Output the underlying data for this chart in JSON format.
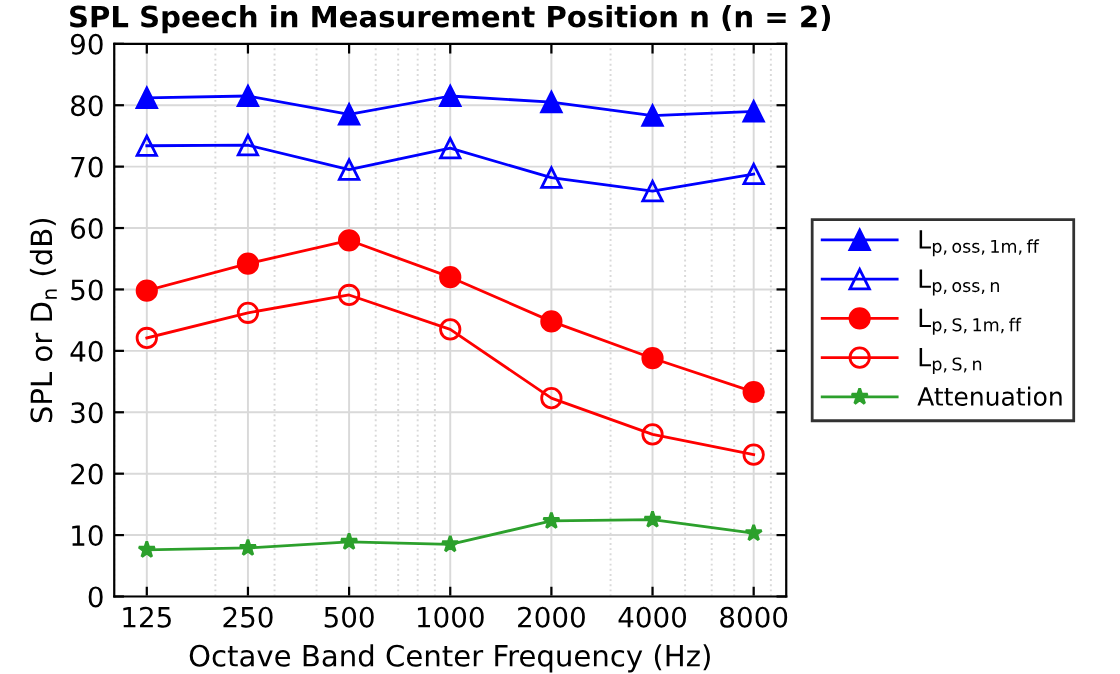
{
  "chart_data": {
    "type": "line",
    "title": "SPL Speech in Measurement Position n (n = 2)",
    "xlabel": "Octave Band Center Frequency (Hz)",
    "ylabel": "SPL or D$_{n}$ (dB)",
    "x": [
      125,
      250,
      500,
      1000,
      2000,
      4000,
      8000
    ],
    "series": [
      {
        "name": "L$_{p,oss,1m,ff}$",
        "color": "#0000ff",
        "marker": "triangle",
        "values": [
          81.2,
          81.5,
          78.5,
          81.5,
          80.5,
          78.3,
          79.0
        ]
      },
      {
        "name": "L$_{p,oss,n}$",
        "color": "#0000ff",
        "marker": "triangle",
        "values": [
          73.4,
          73.5,
          69.5,
          73.0,
          68.2,
          66.0,
          68.8
        ]
      },
      {
        "name": "L$_{p,S,1m,ff}$",
        "color": "#ff0000",
        "marker": "circle",
        "values": [
          49.8,
          54.2,
          58.0,
          52.0,
          44.8,
          38.8,
          33.3
        ]
      },
      {
        "name": "L$_{p,S,n}$",
        "color": "#ff0000",
        "marker": "circle",
        "values": [
          42.1,
          46.2,
          49.1,
          43.5,
          32.3,
          26.4,
          23.1
        ]
      },
      {
        "name": "Attenuation",
        "color": "#2ca02c",
        "marker": "star",
        "values": [
          7.6,
          7.9,
          8.9,
          8.5,
          12.3,
          12.5,
          10.3
        ]
      }
    ],
    "log": "x",
    "xlim": [
      100,
      10000
    ],
    "xticks": [
      125,
      250,
      500,
      1000,
      2000,
      4000,
      8000
    ],
    "ylim": [
      0,
      90
    ],
    "yticks": [
      0,
      10,
      20,
      30,
      40,
      50,
      60,
      70,
      80,
      90
    ],
    "grid": true,
    "legend": "right",
    "line_style": "solid"
  }
}
